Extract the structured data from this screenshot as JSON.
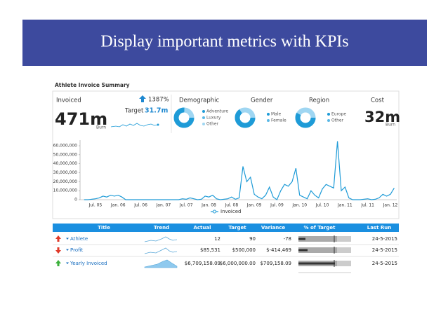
{
  "header": {
    "title": "Display important metrics with KPIs"
  },
  "dashboard": {
    "title": "Athlete Invoice Summary",
    "kpis": {
      "invoiced": {
        "label": "Invoiced",
        "change": "1387%",
        "value": "471m",
        "burn": "Burn",
        "target_label": "Target",
        "target": "31.7m"
      },
      "demographic": {
        "label": "Demographic",
        "legend": [
          "Adventure",
          "Luxury",
          "Other"
        ]
      },
      "gender": {
        "label": "Gender",
        "legend": [
          "Male",
          "Female"
        ]
      },
      "region": {
        "label": "Region",
        "legend": [
          "Europe",
          "Other"
        ]
      },
      "cost": {
        "label": "Cost",
        "value": "32m",
        "burn": "Burn"
      }
    },
    "table": {
      "columns": [
        "Title",
        "Trend",
        "Actual",
        "Target",
        "Variance",
        "% of Target",
        "Last Run"
      ],
      "rows": [
        {
          "title": "Athlete",
          "actual": "12",
          "target": "90",
          "variance": "-78",
          "last_run": "24-5-2015"
        },
        {
          "title": "Profit",
          "actual": "$85,531",
          "target": "$500,000",
          "variance": "$-414,469",
          "last_run": "24-5-2015"
        },
        {
          "title": "Yearly Invoiced",
          "actual": "$6,709,158.09",
          "target": "$6,000,000.00",
          "variance": "$709,158.09",
          "last_run": "24-5-2015"
        }
      ]
    }
  },
  "chart_data": {
    "type": "line",
    "categories": [
      null,
      null,
      null,
      "Jul. 05",
      null,
      null,
      null,
      null,
      null,
      "Jan. 06",
      null,
      null,
      null,
      null,
      null,
      "Jul. 06",
      null,
      null,
      null,
      null,
      null,
      "Jan. 07",
      null,
      null,
      null,
      null,
      null,
      "Jul. 07",
      null,
      null,
      null,
      null,
      null,
      "Jan. 08",
      null,
      null,
      null,
      null,
      null,
      "Jul. 08",
      null,
      null,
      null,
      null,
      null,
      "Jan. 09",
      null,
      null,
      null,
      null,
      null,
      "Jul. 09",
      null,
      null,
      null,
      null,
      null,
      "Jan. 10",
      null,
      null,
      null,
      null,
      null,
      "Jul. 10",
      null,
      null,
      null,
      null,
      null,
      "Jan. 11",
      null,
      null,
      null,
      null,
      null,
      "Jul. 11",
      null,
      null,
      null,
      null,
      null,
      "Jan. 12",
      null
    ],
    "series": [
      {
        "name": "Invoiced",
        "color": "#1e9bd7",
        "values": [
          0,
          0,
          500000,
          1000000,
          2000000,
          4000000,
          3000000,
          5000000,
          4000000,
          5000000,
          3000000,
          0,
          0,
          0,
          0,
          0,
          0,
          0,
          0,
          0,
          0,
          0,
          0,
          0,
          0,
          0,
          1000000,
          500000,
          2000000,
          1000000,
          0,
          500000,
          4000000,
          3000000,
          5000000,
          1000000,
          0,
          500000,
          1000000,
          3000000,
          500000,
          2000000,
          37000000,
          20000000,
          25000000,
          6000000,
          3000000,
          1000000,
          5000000,
          14000000,
          3000000,
          0,
          10000000,
          17000000,
          15000000,
          20000000,
          35000000,
          5000000,
          3000000,
          1000000,
          10000000,
          5000000,
          2000000,
          12000000,
          17000000,
          15000000,
          13000000,
          65000000,
          10000000,
          14000000,
          2000000,
          0,
          0,
          0,
          500000,
          1000000,
          0,
          500000,
          2000000,
          6000000,
          4000000,
          6000000,
          13000000
        ]
      }
    ],
    "ylim": [
      0,
      65000000
    ],
    "yticks": [
      0,
      {
        "value": 10000000,
        "label": "10,000,000"
      },
      {
        "value": 20000000,
        "label": "20,000,000"
      },
      {
        "value": 30000000,
        "label": "30,000,000"
      },
      {
        "value": 40000000,
        "label": "40,000,000"
      },
      {
        "value": 50000000,
        "label": "50,000,000"
      },
      {
        "value": 60000000,
        "label": "60,000,000"
      }
    ],
    "grid": false,
    "legend": "bottom"
  }
}
